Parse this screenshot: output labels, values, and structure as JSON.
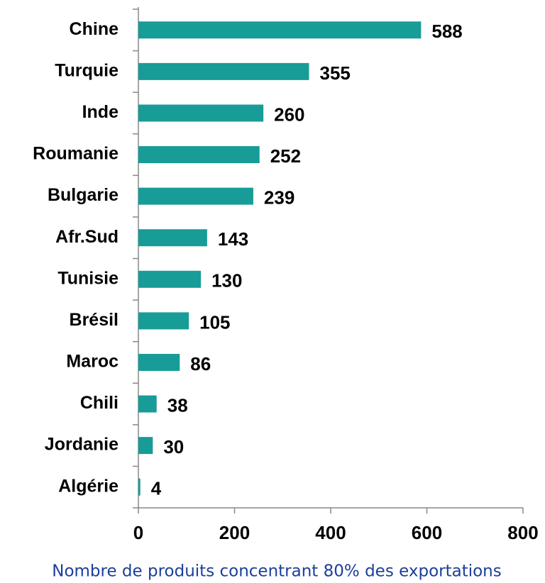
{
  "chart_data": {
    "type": "bar",
    "orientation": "horizontal",
    "categories": [
      "Chine",
      "Turquie",
      "Inde",
      "Roumanie",
      "Bulgarie",
      "Afr.Sud",
      "Tunisie",
      "Brésil",
      "Maroc",
      "Chili",
      "Jordanie",
      "Algérie"
    ],
    "values": [
      588,
      355,
      260,
      252,
      239,
      143,
      130,
      105,
      86,
      38,
      30,
      4
    ],
    "color": "#179c97",
    "xlim": [
      0,
      800
    ],
    "xticks": [
      0,
      200,
      400,
      600,
      800
    ],
    "xlabel": "Nombre de produits concentrant 80% des exportations"
  }
}
